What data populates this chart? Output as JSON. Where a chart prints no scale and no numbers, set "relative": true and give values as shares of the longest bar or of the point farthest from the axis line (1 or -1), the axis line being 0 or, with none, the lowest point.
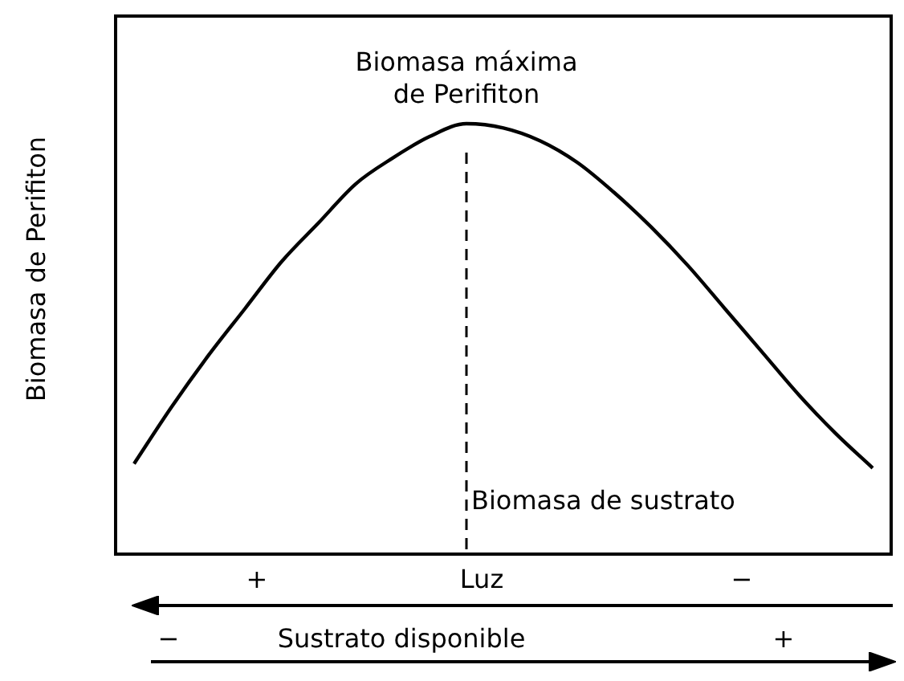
{
  "chart_data": {
    "type": "line",
    "relative": true,
    "ylabel": "Biomasa de Perifiton",
    "categories": [
      null,
      null,
      null,
      null,
      null,
      null,
      null,
      null,
      null,
      null,
      null,
      null,
      null,
      null,
      null,
      null,
      null,
      null,
      null,
      null,
      null
    ],
    "series": [
      {
        "color": "#000000",
        "values": [
          0.21,
          0.34,
          0.46,
          0.57,
          0.68,
          0.77,
          0.86,
          0.92,
          0.97,
          1,
          0.99,
          0.96,
          0.91,
          0.84,
          0.76,
          0.67,
          0.57,
          0.47,
          0.37,
          0.28,
          0.2
        ]
      }
    ],
    "annotations": [
      "Biomasa máxima\nde Perifiton",
      "+",
      "Luz",
      "−",
      "−",
      "Sustrato disponible",
      "+",
      "Biomasa de sustrato"
    ],
    "marker": "none",
    "line_style": "solid",
    "legend": false,
    "tick_labels": false
  }
}
